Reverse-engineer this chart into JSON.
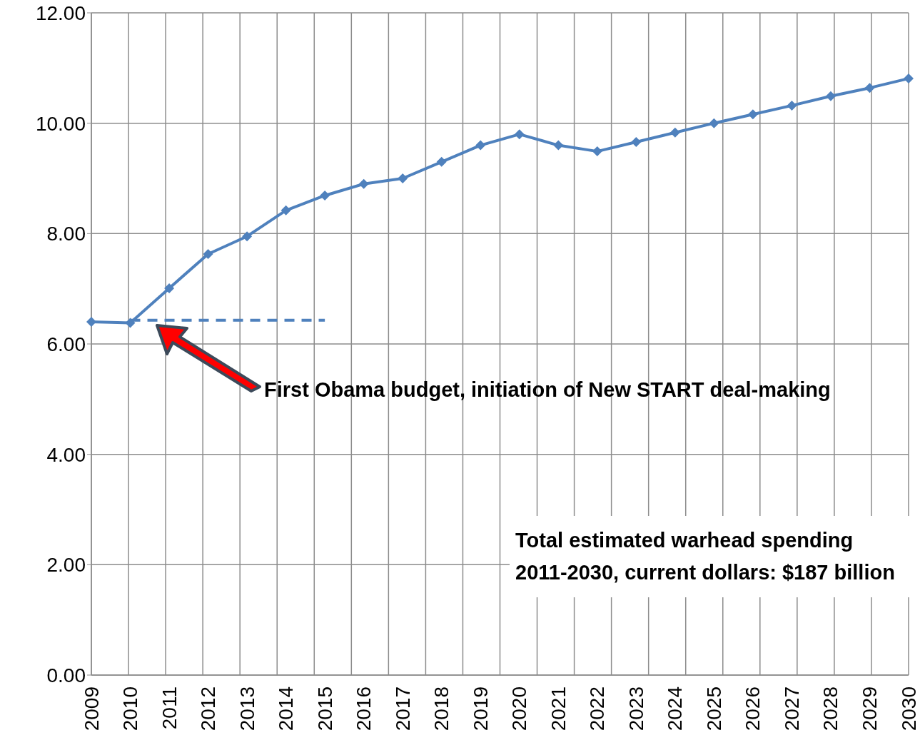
{
  "chart_data": {
    "type": "line",
    "categories": [
      "2009",
      "2010",
      "2011",
      "2012",
      "2013",
      "2014",
      "2015",
      "2016",
      "2017",
      "2018",
      "2019",
      "2020",
      "2021",
      "2022",
      "2023",
      "2024",
      "2025",
      "2026",
      "2027",
      "2028",
      "2029",
      "2030"
    ],
    "series": [
      {
        "color": "#4f81bd",
        "marker": "diamond",
        "line_style": "solid",
        "values": [
          6.4,
          6.38,
          7.01,
          7.63,
          7.95,
          8.42,
          8.69,
          8.9,
          9.0,
          9.3,
          9.6,
          9.8,
          9.6,
          9.49,
          9.66,
          9.83,
          10.0,
          10.16,
          10.32,
          10.49,
          10.64,
          10.81
        ]
      },
      {
        "color": "#4f81bd",
        "marker": "none",
        "line_style": "dashed",
        "values": [
          null,
          6.43,
          6.43,
          6.43,
          6.43,
          6.43,
          6.43,
          null,
          null,
          null,
          null,
          null,
          null,
          null,
          null,
          null,
          null,
          null,
          null,
          null,
          null,
          null
        ]
      }
    ],
    "ylim": [
      0,
      12
    ],
    "yticks": [
      {
        "value": 0,
        "label": "0.00"
      },
      {
        "value": 2,
        "label": "2.00"
      },
      {
        "value": 4,
        "label": "4.00"
      },
      {
        "value": 6,
        "label": "6.00"
      },
      {
        "value": 8,
        "label": "8.00"
      },
      {
        "value": 10,
        "label": "10.00"
      },
      {
        "value": 12,
        "label": "12.00"
      }
    ],
    "grid": true,
    "annotations": [
      "First Obama budget, initiation of New START deal-making",
      "Total estimated warhead spending 2011-2030, current dollars: $187 billion"
    ]
  }
}
